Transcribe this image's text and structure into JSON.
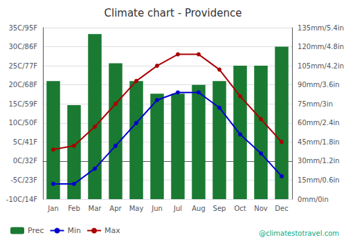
{
  "chart_data": {
    "type": "bar",
    "title": "Climate chart - Providence",
    "categories": [
      "Jan",
      "Feb",
      "Mar",
      "Apr",
      "May",
      "Jun",
      "Jul",
      "Aug",
      "Sep",
      "Oct",
      "Nov",
      "Dec"
    ],
    "series": [
      {
        "name": "Prec",
        "type": "bar",
        "color": "#1a7a32",
        "axis": "y2",
        "values": [
          93,
          74,
          130,
          107,
          93,
          83,
          83,
          90,
          93,
          105,
          105,
          120
        ]
      },
      {
        "name": "Min",
        "type": "line",
        "color": "#0000cc",
        "marker": "circle",
        "values": [
          -6,
          -6,
          -2,
          4,
          10,
          16,
          18,
          18,
          14,
          7,
          2,
          -4
        ]
      },
      {
        "name": "Max",
        "type": "line",
        "color": "#aa0000",
        "marker": "circle",
        "values": [
          3,
          4,
          9,
          15,
          21,
          25,
          28,
          28,
          24,
          17,
          11,
          5
        ]
      }
    ],
    "ylim": [
      -10,
      35
    ],
    "yticks": [
      {
        "value": -10,
        "label": "-10C/14F"
      },
      {
        "value": -5,
        "label": "-5C/23F"
      },
      {
        "value": 0,
        "label": "0C/32F"
      },
      {
        "value": 5,
        "label": "5C/41F"
      },
      {
        "value": 10,
        "label": "10C/50F"
      },
      {
        "value": 15,
        "label": "15C/59F"
      },
      {
        "value": 20,
        "label": "20C/68F"
      },
      {
        "value": 25,
        "label": "25C/77F"
      },
      {
        "value": 30,
        "label": "30C/86F"
      },
      {
        "value": 35,
        "label": "35C/95F"
      }
    ],
    "y2lim": [
      0,
      135
    ],
    "y2ticks": [
      {
        "value": 0,
        "label": "0mm/0in"
      },
      {
        "value": 15,
        "label": "15mm/0.6in"
      },
      {
        "value": 30,
        "label": "30mm/1.2in"
      },
      {
        "value": 45,
        "label": "45mm/1.8in"
      },
      {
        "value": 60,
        "label": "60mm/2.4in"
      },
      {
        "value": 75,
        "label": "75mm/3in"
      },
      {
        "value": 90,
        "label": "90mm/3.6in"
      },
      {
        "value": 105,
        "label": "105mm/4.2in"
      },
      {
        "value": 120,
        "label": "120mm/4.8in"
      },
      {
        "value": 135,
        "label": "135mm/5.4in"
      }
    ],
    "grid": true,
    "legend": "lower left",
    "annotations": [
      "@climatestotravel.com"
    ]
  }
}
